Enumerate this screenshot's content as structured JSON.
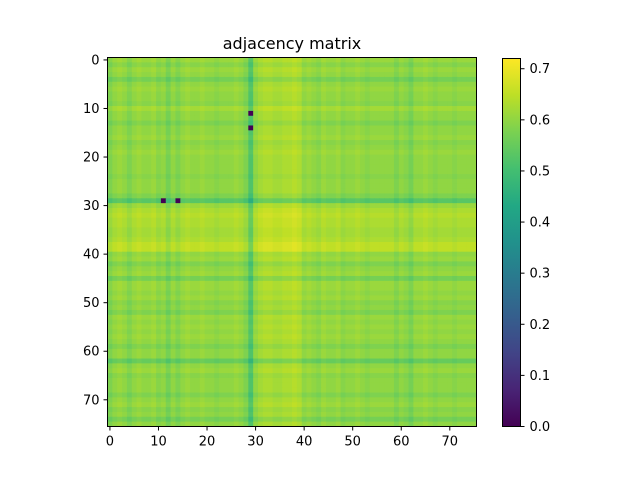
{
  "chart_data": {
    "type": "heatmap",
    "title": "adjacency matrix",
    "xlabel": "",
    "ylabel": "",
    "size": 76,
    "x_ticks": [
      0,
      10,
      20,
      30,
      40,
      50,
      60,
      70
    ],
    "y_ticks": [
      0,
      10,
      20,
      30,
      40,
      50,
      60,
      70
    ],
    "colormap": "viridis",
    "vmin": 0.0,
    "vmax": 0.72,
    "colorbar_ticks": [
      0.0,
      0.1,
      0.2,
      0.3,
      0.4,
      0.5,
      0.6,
      0.7
    ],
    "base_value": 0.6,
    "row_offsets": [
      0.01,
      -0.01,
      0.01,
      0.0,
      -0.03,
      0.0,
      0.01,
      0.0,
      0.0,
      -0.01,
      0.02,
      0.0,
      0.0,
      -0.02,
      0.0,
      0.0,
      0.01,
      -0.01,
      0.0,
      0.01,
      0.0,
      0.0,
      0.0,
      0.0,
      -0.01,
      0.0,
      0.0,
      0.0,
      -0.02,
      -0.07,
      0.01,
      0.03,
      0.04,
      0.03,
      0.03,
      0.02,
      0.02,
      0.03,
      0.05,
      0.05,
      0.0,
      0.01,
      -0.02,
      0.0,
      0.01,
      -0.03,
      0.01,
      0.01,
      0.0,
      0.01,
      -0.01,
      0.0,
      -0.02,
      0.01,
      0.0,
      0.01,
      0.0,
      0.01,
      0.0,
      -0.02,
      0.0,
      0.0,
      -0.05,
      0.0,
      0.01,
      -0.01,
      0.0,
      0.0,
      0.0,
      -0.02,
      0.0,
      0.01,
      -0.01,
      0.0,
      -0.03,
      0.0
    ],
    "col_offsets": [
      -0.02,
      0.0,
      0.01,
      0.0,
      -0.02,
      0.0,
      0.01,
      0.0,
      0.0,
      0.01,
      -0.01,
      0.0,
      -0.03,
      0.0,
      -0.02,
      0.0,
      0.01,
      0.0,
      0.0,
      0.01,
      0.0,
      0.0,
      -0.01,
      0.0,
      0.0,
      0.0,
      0.01,
      0.0,
      -0.02,
      -0.08,
      0.0,
      0.02,
      0.03,
      0.03,
      0.02,
      0.02,
      0.03,
      0.03,
      0.04,
      0.03,
      0.0,
      0.01,
      0.0,
      -0.01,
      0.01,
      0.0,
      0.0,
      0.01,
      -0.01,
      0.0,
      0.0,
      0.01,
      0.0,
      -0.01,
      0.0,
      0.0,
      0.0,
      0.0,
      0.0,
      -0.02,
      0.0,
      -0.01,
      -0.03,
      0.0,
      0.0,
      0.01,
      0.0,
      -0.01,
      0.0,
      0.0,
      0.0,
      -0.01,
      0.0,
      0.0,
      0.0,
      0.0
    ],
    "zero_cells": [
      [
        11,
        29
      ],
      [
        14,
        29
      ],
      [
        29,
        11
      ],
      [
        29,
        14
      ]
    ]
  }
}
